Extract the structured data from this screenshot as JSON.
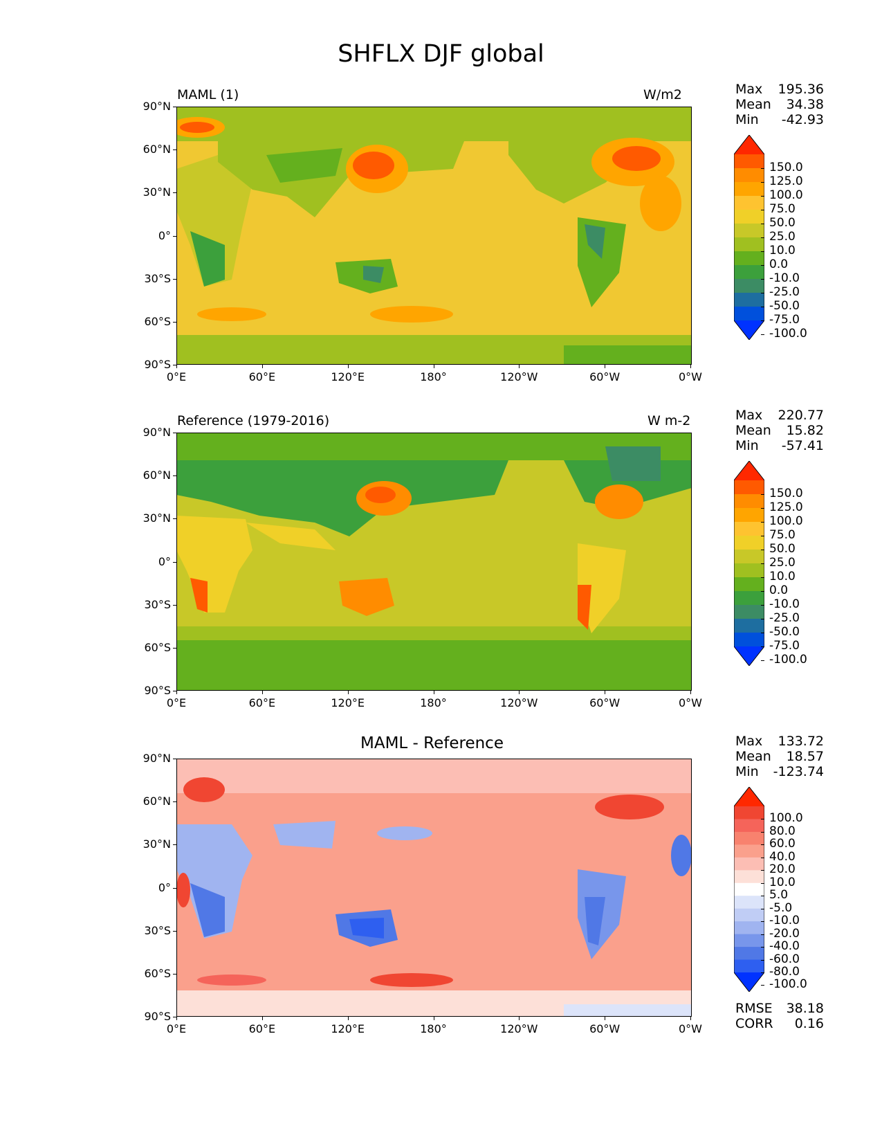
{
  "figure": {
    "title": "SHFLX DJF global"
  },
  "x_tick_labels": [
    "0°E",
    "60°E",
    "120°E",
    "180°",
    "120°W",
    "60°W",
    "0°W"
  ],
  "y_tick_labels": [
    "90°N",
    "60°N",
    "30°N",
    "0°",
    "30°S",
    "60°S",
    "90°S"
  ],
  "chart_data": [
    {
      "type": "heatmap",
      "title": "MAML (1)",
      "units": "W/m2",
      "stats": {
        "max_label": "Max",
        "max": "195.36",
        "mean_label": "Mean",
        "mean": "34.38",
        "min_label": "Min",
        "min": "-42.93"
      },
      "colorbar_levels": [
        "150.0",
        "125.0",
        "100.0",
        "75.0",
        "50.0",
        "25.0",
        "10.0",
        "0.0",
        "-10.0",
        "-25.0",
        "-50.0",
        "-75.0",
        "-100.0"
      ],
      "colorbar_colors": [
        "#ff2800",
        "#ff5a00",
        "#ff8c00",
        "#ffa500",
        "#fec330",
        "#f0d028",
        "#c8c828",
        "#a0c020",
        "#64b01e",
        "#3ca03c",
        "#3c8c64",
        "#1e6ea0",
        "#0050dc",
        "#0032ff"
      ],
      "xlim": [
        0,
        360
      ],
      "ylim": [
        -90,
        90
      ],
      "background": "#f0c832"
    },
    {
      "type": "heatmap",
      "title": "Reference (1979-2016)",
      "units": "W m-2",
      "stats": {
        "max_label": "Max",
        "max": "220.77",
        "mean_label": "Mean",
        "mean": "15.82",
        "min_label": "Min",
        "min": "-57.41"
      },
      "colorbar_levels": [
        "150.0",
        "125.0",
        "100.0",
        "75.0",
        "50.0",
        "25.0",
        "10.0",
        "0.0",
        "-10.0",
        "-25.0",
        "-50.0",
        "-75.0",
        "-100.0"
      ],
      "colorbar_colors": [
        "#ff2800",
        "#ff5a00",
        "#ff8c00",
        "#ffa500",
        "#fec330",
        "#f0d028",
        "#c8c828",
        "#a0c020",
        "#64b01e",
        "#3ca03c",
        "#3c8c64",
        "#1e6ea0",
        "#0050dc",
        "#0032ff"
      ],
      "xlim": [
        0,
        360
      ],
      "ylim": [
        -90,
        90
      ],
      "background": "#c8c828"
    },
    {
      "type": "heatmap",
      "title": "MAML - Reference",
      "stats": {
        "max_label": "Max",
        "max": "133.72",
        "mean_label": "Mean",
        "mean": "18.57",
        "min_label": "Min",
        "min": "-123.74"
      },
      "colorbar_levels": [
        "100.0",
        "80.0",
        "60.0",
        "40.0",
        "20.0",
        "10.0",
        "5.0",
        "-5.0",
        "-10.0",
        "-20.0",
        "-40.0",
        "-60.0",
        "-80.0",
        "-100.0"
      ],
      "colorbar_colors": [
        "#ff2800",
        "#f04632",
        "#f5645a",
        "#f8826e",
        "#faa08c",
        "#fcbeb4",
        "#fde0d8",
        "#ffffff",
        "#dce4fa",
        "#c0cdf5",
        "#a0b4f0",
        "#7896eb",
        "#5078e6",
        "#2e5ff0",
        "#0032ff"
      ],
      "xlim": [
        0,
        360
      ],
      "ylim": [
        -90,
        90
      ],
      "background": "#faa08c",
      "metrics": {
        "rmse_label": "RMSE",
        "rmse": "38.18",
        "corr_label": "CORR",
        "corr": "0.16"
      }
    }
  ]
}
